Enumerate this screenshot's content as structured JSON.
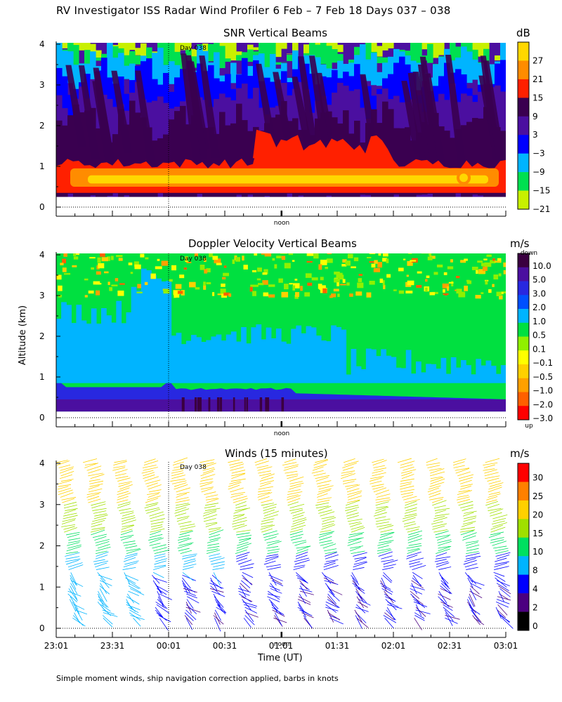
{
  "title": "RV Investigator ISS Radar Wind Profiler    6 Feb –  7 Feb 18 Days 037 – 038",
  "ylabel": "Altitude (km)",
  "xlabel": "Time (UT)",
  "footnote": "Simple moment winds, ship navigation correction applied, barbs in knots",
  "day_marker": "Day 038",
  "noon_label": "noon",
  "chart_data": [
    {
      "type": "heatmap",
      "title": "SNR Vertical Beams",
      "unit": "dB",
      "yticks": [
        "0",
        "1",
        "2",
        "3",
        "4"
      ],
      "ylim": [
        0,
        4
      ],
      "colorbar": {
        "labels": [
          "27",
          "21",
          "15",
          "9",
          "3",
          "−3",
          "−9",
          "−15",
          "−21"
        ],
        "colors": [
          "#ffd700",
          "#ff8c00",
          "#ff2000",
          "#3a0050",
          "#4b0fa0",
          "#0000ff",
          "#00b4ff",
          "#00e050",
          "#c8f000"
        ]
      }
    },
    {
      "type": "heatmap",
      "title": "Doppler Velocity Vertical Beams",
      "unit": "m/s",
      "yticks": [
        "0",
        "1",
        "2",
        "3",
        "4"
      ],
      "ylim": [
        0,
        4
      ],
      "colorbar": {
        "top_label": "down",
        "bottom_label": "up",
        "labels": [
          "10.0",
          "5.0",
          "3.0",
          "2.0",
          "1.0",
          "0.5",
          "0.1",
          "−0.1",
          "−0.5",
          "−1.0",
          "−2.0",
          "−3.0"
        ],
        "colors": [
          "#3a0040",
          "#4b0fa0",
          "#2828e0",
          "#0050ff",
          "#00b4ff",
          "#00e040",
          "#90f000",
          "#ffff00",
          "#ffd000",
          "#ffa000",
          "#ff6000",
          "#ff0000"
        ]
      }
    },
    {
      "type": "scatter",
      "title": "Winds (15 minutes)",
      "unit": "m/s",
      "yticks": [
        "0",
        "1",
        "2",
        "3",
        "4"
      ],
      "ylim": [
        0,
        4
      ],
      "xticks": [
        "23:01",
        "23:31",
        "00:01",
        "00:31",
        "01:01",
        "01:31",
        "02:01",
        "02:31",
        "03:01"
      ],
      "colorbar": {
        "labels": [
          "30",
          "25",
          "20",
          "15",
          "10",
          "8",
          "4",
          "2",
          "0"
        ],
        "colors": [
          "#ff0000",
          "#ff8000",
          "#ffd000",
          "#a0e000",
          "#00e060",
          "#00b4ff",
          "#0000ff",
          "#4b0080",
          "#000000"
        ]
      }
    }
  ]
}
